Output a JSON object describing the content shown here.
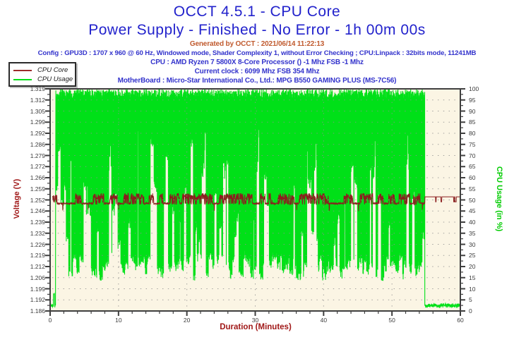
{
  "header": {
    "title": "OCCT 4.5.1 - CPU Core",
    "subtitle": "Power Supply - Finished - No Error - 1h 00m 00s",
    "generated": "Generated by OCCT : 2021/06/14 11:22:13",
    "config": "Config : GPU3D : 1707 x 960 @ 60 Hz, Windowed mode, Shader Complexity 1, without Error Checking ; CPU:Linpack : 32bits mode, 11241MB",
    "cpu": "CPU : AMD Ryzen 7 5800X 8-Core Processor () -1 Mhz FSB -1 Mhz",
    "clock": "Current clock : 6099 Mhz FSB 354 Mhz",
    "motherboard": "MotherBoard : Micro-Star International Co., Ltd.: MPG B550 GAMING PLUS (MS-7C56)"
  },
  "legend": {
    "items": [
      {
        "label": "CPU Core",
        "color": "#9C2B2B"
      },
      {
        "label": "CPU Usage",
        "color": "#00E018"
      }
    ]
  },
  "colors": {
    "title": "#2222CC",
    "info": "#3333CC",
    "generated": "#C05A2E",
    "axis_left_label": "#A01818",
    "axis_right_label": "#00CC00",
    "x_axis_label": "#A01818",
    "tick_label": "#3C3C3C",
    "page_bg": "#FFFFFF"
  },
  "chart_data": {
    "type": "line",
    "title": "OCCT 4.5.1 - CPU Core",
    "x_axis": {
      "label": "Duration (Minutes)",
      "min": 0,
      "max": 60,
      "major_ticks": [
        0,
        10,
        20,
        30,
        40,
        50,
        60
      ],
      "minor_step": 2
    },
    "y_left": {
      "label": "Voltage (V)",
      "min": 1.186,
      "max": 1.3193,
      "tick_labels": [
        "1.319",
        "1.312",
        "1.305",
        "1.299",
        "1.292",
        "1.286",
        "1.279",
        "1.272",
        "1.266",
        "1.259",
        "1.252",
        "1.246",
        "1.239",
        "1.232",
        "1.226",
        "1.219",
        "1.212",
        "1.206",
        "1.199",
        "1.192",
        "1.186"
      ],
      "color": "#A01818"
    },
    "y_right": {
      "label": "CPU Usage (in %)",
      "min": 0,
      "max": 100,
      "major_step": 5,
      "minor_step": 2.5,
      "color": "#00CC00"
    },
    "grid": {
      "style": "dotted",
      "color": "#8F8F8F",
      "horizontal": "every voltage tick row",
      "vertical": "every 10 minutes"
    },
    "plot_bg": "#FBF5E4",
    "frame_color": "#3F3F3F",
    "legend_position": "top-left, outside plot",
    "seed": 7,
    "sample_step_min": 0.03,
    "series": [
      {
        "name": "CPU Core",
        "axis": "left",
        "unit": "V",
        "color": "#8B1E1E",
        "summary": "Warm-up blob ~1.2535 V (0.35-1 min); under load ~1.2505 V base with square pulses up to ~1.2567 V and rare dips to ~1.2465 V (1-54.8 min); after load flat ~1.2545 V with brief dips to ~1.2515 V until 60 min",
        "key_points": [
          [
            0.35,
            1.2535
          ],
          [
            1.0,
            1.2505
          ],
          [
            30,
            1.2505
          ],
          [
            54.8,
            1.2505
          ],
          [
            55.0,
            1.2545
          ],
          [
            60,
            1.2545
          ]
        ],
        "pattern": {
          "start_min": 0.35,
          "warmup_end_min": 1.0,
          "warmup_level": 1.2535,
          "load_end_min": 54.8,
          "load_base": 1.2505,
          "pulse_max_above_base": 0.0062,
          "dip_level": 1.2465,
          "post_level": 1.2545,
          "post_dip_level": 1.2515
        }
      },
      {
        "name": "CPU Usage",
        "axis": "right",
        "unit": "%",
        "color": "#00E018",
        "summary": "Idle ~2-3% before 0.8 min; rapid oscillation between ~15% and 100% during load (0.8-54.8 min) with intermittent raised troughs forming pale vertical gaps; drops back to ~2-3% from 55 to 60 min",
        "key_points": [
          [
            0,
            2.5
          ],
          [
            0.8,
            2.5
          ],
          [
            0.85,
            100
          ],
          [
            28,
            55
          ],
          [
            54.8,
            100
          ],
          [
            55,
            2.5
          ],
          [
            60,
            2.5
          ]
        ],
        "pattern": {
          "idle_level": 2.5,
          "idle_noise": 2.0,
          "load_start_min": 0.8,
          "load_end_min": 54.8,
          "high_range": [
            96,
            100
          ],
          "low_common_range": [
            13,
            23
          ],
          "low_raised_range": [
            28,
            55
          ],
          "low_tall_range": [
            50,
            80
          ],
          "tall_gap_minutes": [
            8.8,
            22.6,
            25.5,
            30.4,
            38.8,
            44.2,
            47.4,
            52.3
          ],
          "startup_bump": [
            0.5,
            0.64,
            7
          ]
        }
      }
    ]
  }
}
